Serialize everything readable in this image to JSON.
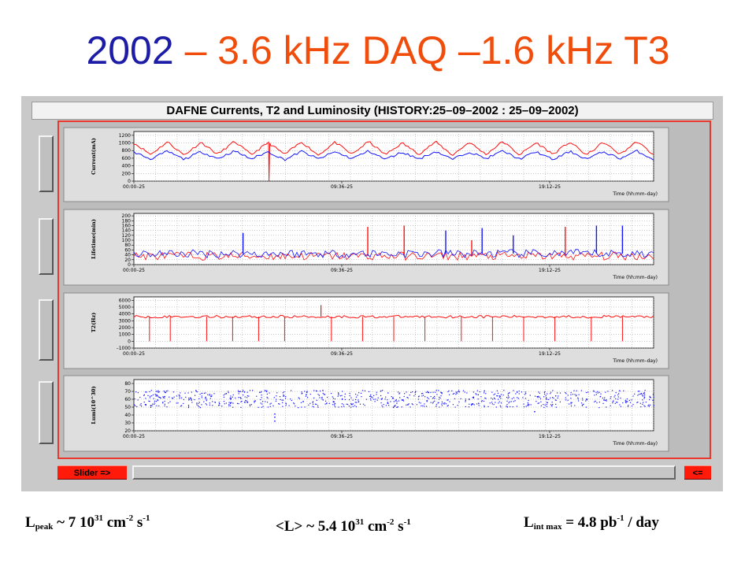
{
  "slide": {
    "title_year": "2002",
    "title_rest": " – 3.6 kHz DAQ –1.6 kHz T3"
  },
  "window": {
    "title": "DAFNE Currents, T2 and Luminosity (HISTORY:25–09–2002 : 25–09–2002)",
    "slider_label": "Slider =>",
    "back_label": "<="
  },
  "colors": {
    "title_blue": "#1c1ca6",
    "title_red": "#f04d0c",
    "series_red": "#ff1010",
    "series_blue": "#1414ff",
    "frame_red": "#e8392c",
    "button_red": "#ff1a0a"
  },
  "chart_data": [
    {
      "type": "line",
      "ylabel": "Current(mA)",
      "xlabel": "Time (hh:mm–day)",
      "x_ticks": [
        "00:00–25",
        "09:36–25",
        "19:12–25"
      ],
      "y_ticks": [
        "0",
        "200",
        "400",
        "600",
        "800",
        "1000",
        "1200"
      ],
      "ylim": [
        0,
        1300
      ],
      "grid": true,
      "series": [
        {
          "values": [
            1000,
            700,
            1030,
            680,
            1020,
            700,
            1040,
            690,
            1010,
            700,
            1030,
            680,
            1020,
            700,
            1040,
            690,
            1000,
            710,
            1030,
            680,
            1020,
            700,
            1040,
            690,
            1010,
            700,
            1030,
            680,
            1020,
            700,
            1040,
            690
          ],
          "dips": [
            {
              "pos": 0.26,
              "value": 0
            }
          ]
        },
        {
          "values": [
            760,
            580,
            780,
            570,
            770,
            590,
            790,
            580,
            770,
            560,
            780,
            580,
            770,
            590,
            790,
            570,
            760,
            580,
            780,
            570,
            770,
            590,
            790,
            580,
            770,
            560,
            780,
            580,
            770,
            590,
            790,
            570
          ]
        }
      ]
    },
    {
      "type": "line",
      "ylabel": "Lifetime(min)",
      "xlabel": "Time (hh:mm–day)",
      "x_ticks": [
        "00:00–25",
        "09:36–25",
        "19:12–25"
      ],
      "y_ticks": [
        "0",
        "20",
        "40",
        "60",
        "80",
        "100",
        "120",
        "140",
        "160",
        "180",
        "200"
      ],
      "ylim": [
        0,
        210
      ],
      "grid": true,
      "series": [
        {
          "baseline": 35,
          "spikes": [
            {
              "pos": 0.45,
              "value": 155
            },
            {
              "pos": 0.52,
              "value": 160
            },
            {
              "pos": 0.65,
              "value": 100
            },
            {
              "pos": 0.83,
              "value": 155
            }
          ]
        },
        {
          "baseline": 45,
          "spikes": [
            {
              "pos": 0.21,
              "value": 130
            },
            {
              "pos": 0.6,
              "value": 140
            },
            {
              "pos": 0.67,
              "value": 150
            },
            {
              "pos": 0.73,
              "value": 120
            },
            {
              "pos": 0.89,
              "value": 160
            },
            {
              "pos": 0.94,
              "value": 160
            }
          ]
        }
      ]
    },
    {
      "type": "line",
      "ylabel": "T2(Hz)",
      "xlabel": "Time (hh:mm–day)",
      "x_ticks": [
        "00:00–25",
        "09:36–25",
        "19:12–25"
      ],
      "y_ticks": [
        "–1000",
        "0",
        "1000",
        "2000",
        "3000",
        "4000",
        "5000",
        "6000"
      ],
      "ylim": [
        -1000,
        6500
      ],
      "grid": true,
      "series": [
        {
          "baseline": 3600,
          "peak": {
            "pos": 0.36,
            "value": 5300
          },
          "dips": [
            {
              "pos": 0.03,
              "value": 0
            },
            {
              "pos": 0.07,
              "value": 0
            },
            {
              "pos": 0.14,
              "value": 0
            },
            {
              "pos": 0.19,
              "value": 0
            },
            {
              "pos": 0.24,
              "value": 0
            },
            {
              "pos": 0.29,
              "value": 0
            },
            {
              "pos": 0.38,
              "value": 0
            },
            {
              "pos": 0.44,
              "value": 0
            },
            {
              "pos": 0.5,
              "value": 0
            },
            {
              "pos": 0.56,
              "value": 0
            },
            {
              "pos": 0.63,
              "value": 0
            },
            {
              "pos": 0.69,
              "value": 0
            },
            {
              "pos": 0.75,
              "value": 0
            },
            {
              "pos": 0.81,
              "value": 0
            },
            {
              "pos": 0.88,
              "value": 0
            },
            {
              "pos": 0.94,
              "value": 0
            }
          ]
        }
      ]
    },
    {
      "type": "scatter",
      "ylabel": "Lumi(10^30)",
      "xlabel": "Time (hh:mm–day)",
      "x_ticks": [
        "00:00–25",
        "09:36–25",
        "19:12–25"
      ],
      "y_ticks": [
        "20",
        "30",
        "40",
        "50",
        "60",
        "70",
        "80"
      ],
      "ylim": [
        20,
        85
      ],
      "grid": true,
      "series": [
        {
          "min": 50,
          "max": 72,
          "outliers": [
            {
              "pos": 0.27,
              "value": 33
            },
            {
              "pos": 0.27,
              "value": 38
            },
            {
              "pos": 0.27,
              "value": 42
            },
            {
              "pos": 0.77,
              "value": 45
            }
          ]
        }
      ]
    }
  ],
  "stats": {
    "lpeak_L": "L",
    "lpeak_sub": "peak",
    "lpeak_value": " ~ 7   10",
    "lpeak_exp": "31",
    "lpeak_unit1": " cm",
    "lpeak_unit1_exp": "-2",
    "lpeak_unit2": " s",
    "lpeak_unit2_exp": "-1",
    "lavg_value": "<L> ~ 5.4   10",
    "lavg_exp": "31",
    "lavg_unit1": " cm",
    "lavg_unit1_exp": "-2",
    "lavg_unit2": " s",
    "lavg_unit2_exp": "-1",
    "lint_L": "L",
    "lint_sub": "int max",
    "lint_value": " = 4.8 pb",
    "lint_exp": "-1",
    "lint_unit": " / day"
  }
}
